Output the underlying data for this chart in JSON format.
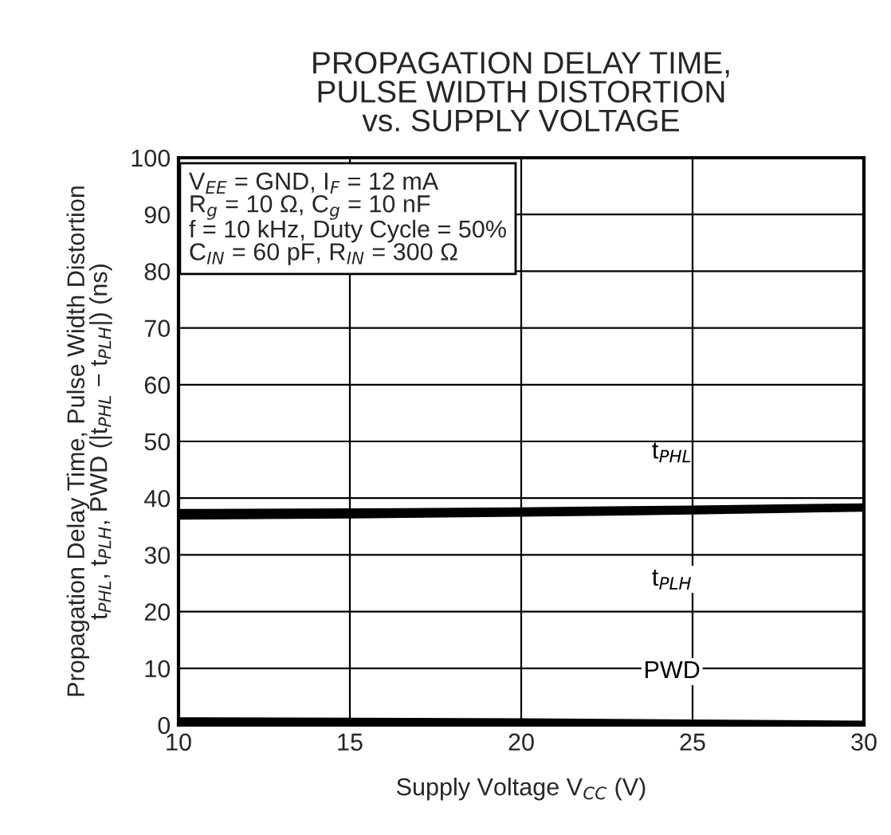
{
  "chart_data": {
    "type": "line",
    "title": "PROPAGATION DELAY TIME,\nPULSE WIDTH DISTORTION\nvs. SUPPLY VOLTAGE",
    "xlabel": "Supply Voltage V$_{CC}$ (V)",
    "ylabel": "Propagation Delay Time, Pulse Width Distortion\nt$_{PHL}$, t$_{PLH}$, PWD (|t$_{PHL}$ − t$_{PLH}$|) (ns)",
    "x": [
      10,
      15,
      20,
      25,
      30
    ],
    "series": [
      {
        "name": "t$_{PHL}$",
        "color": "#000000",
        "values": [
          37.5,
          37.6,
          37.8,
          38.1,
          38.5
        ]
      },
      {
        "name": "t$_{PLH}$",
        "color": "#000000",
        "values": [
          36.8,
          37.0,
          37.3,
          37.7,
          38.2
        ]
      },
      {
        "name": "PWD",
        "color": "#000000",
        "values": [
          0.8,
          0.7,
          0.6,
          0.4,
          0.2
        ]
      }
    ],
    "annotations": [
      "V$_{EE}$ = GND, I$_{F}$ = 12 mA\nR$_{g}$ = 10 Ω, C$_{g}$ = 10 nF\nf = 10 kHz, Duty Cycle = 50%\nC$_{IN}$ = 60 pF, R$_{IN}$ = 300 Ω"
    ],
    "xlim": [
      10,
      30
    ],
    "xticks": [
      10,
      15,
      20,
      25,
      30
    ],
    "ylim": [
      0,
      100
    ],
    "yticks": [
      0,
      10,
      20,
      30,
      40,
      50,
      60,
      70,
      80,
      90,
      100
    ],
    "grid": true,
    "legend": false,
    "line_style": "solid",
    "marker": "none"
  }
}
